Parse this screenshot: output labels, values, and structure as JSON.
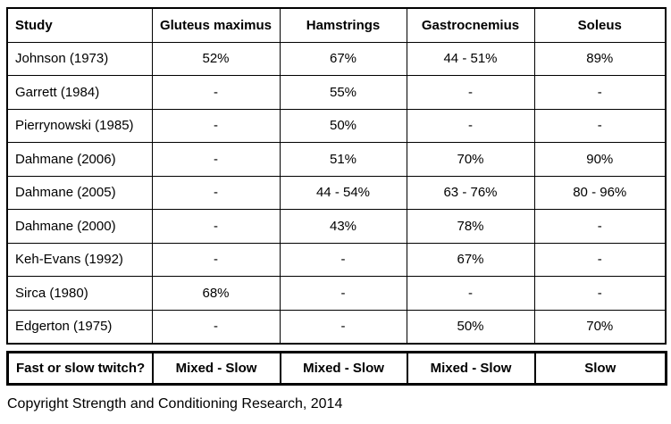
{
  "table": {
    "headers": [
      "Study",
      "Gluteus maximus",
      "Hamstrings",
      "Gastrocnemius",
      "Soleus"
    ],
    "rows": [
      {
        "study": "Johnson (1973)",
        "values": [
          "52%",
          "67%",
          "44 - 51%",
          "89%"
        ]
      },
      {
        "study": "Garrett (1984)",
        "values": [
          "-",
          "55%",
          "-",
          "-"
        ]
      },
      {
        "study": "Pierrynowski (1985)",
        "values": [
          "-",
          "50%",
          "-",
          "-"
        ]
      },
      {
        "study": "Dahmane (2006)",
        "values": [
          "-",
          "51%",
          "70%",
          "90%"
        ]
      },
      {
        "study": "Dahmane (2005)",
        "values": [
          "-",
          "44 - 54%",
          "63 - 76%",
          "80 - 96%"
        ]
      },
      {
        "study": "Dahmane (2000)",
        "values": [
          "-",
          "43%",
          "78%",
          "-"
        ]
      },
      {
        "study": "Keh-Evans (1992)",
        "values": [
          "-",
          "-",
          "67%",
          "-"
        ]
      },
      {
        "study": "Sirca (1980)",
        "values": [
          "68%",
          "-",
          "-",
          "-"
        ]
      },
      {
        "study": "Edgerton (1975)",
        "values": [
          "-",
          "-",
          "50%",
          "70%"
        ]
      }
    ]
  },
  "summary": {
    "label": "Fast or slow twitch?",
    "values": [
      "Mixed - Slow",
      "Mixed - Slow",
      "Mixed - Slow",
      "Slow"
    ]
  },
  "footer": {
    "copyright": "Copyright Strength and Conditioning Research, 2014"
  },
  "colors": {
    "border": "#000000",
    "background": "#ffffff",
    "text": "#000000"
  }
}
